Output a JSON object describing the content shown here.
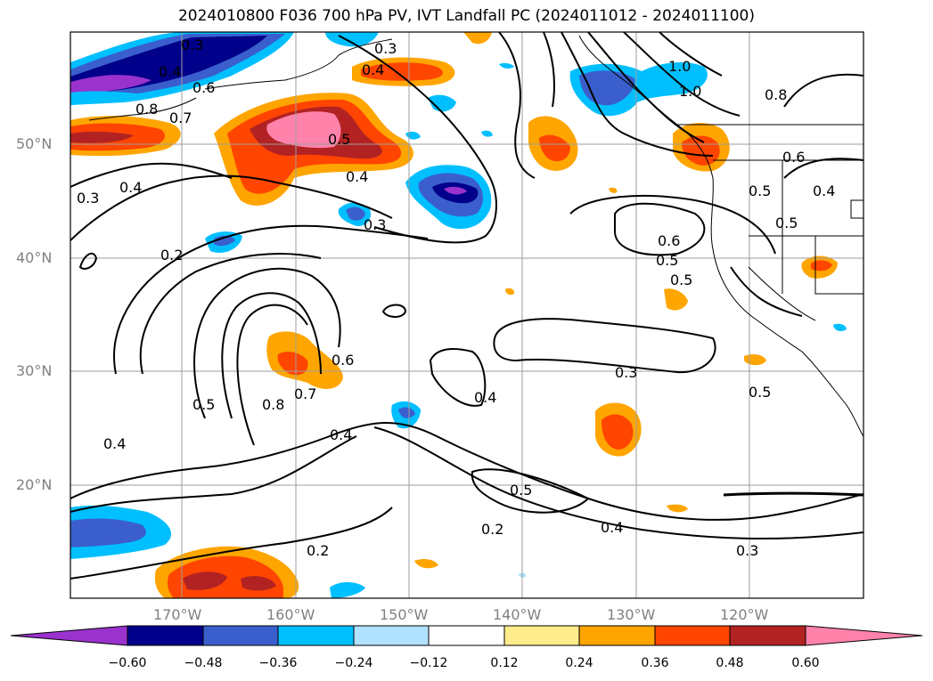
{
  "title": "2024010800 F036 700 hPa PV, IVT Landfall PC (2024011012 - 2024011100)",
  "lat_labels": [
    "50°N",
    "40°N",
    "30°N",
    "20°N"
  ],
  "lon_labels": [
    "170°W",
    "160°W",
    "150°W",
    "140°W",
    "130°W",
    "120°W"
  ],
  "colorbar": {
    "ticks": [
      "−0.60",
      "−0.48",
      "−0.36",
      "−0.24",
      "−0.12",
      "0.12",
      "0.24",
      "0.36",
      "0.48",
      "0.60"
    ],
    "colors": [
      "#9a32cd",
      "#00008b",
      "#3a5fcd",
      "#00bfff",
      "#b0e2ff",
      "#ffffff",
      "#ffec8b",
      "#ffa500",
      "#ff4500",
      "#b22222",
      "#ff82ab"
    ]
  },
  "contour_labels": [
    "0.3",
    "0.4",
    "0.6",
    "0.8",
    "0.7",
    "0.3",
    "0.4",
    "0.2",
    "0.4",
    "0.5",
    "0.4",
    "0.3",
    "0.3",
    "1.0",
    "1.0",
    "0.8",
    "0.6",
    "0.4",
    "0.5",
    "0.5",
    "0.6",
    "0.5",
    "0.6",
    "0.5",
    "0.8",
    "0.7",
    "0.4",
    "0.4",
    "0.3",
    "0.5",
    "0.5",
    "0.2",
    "0.4",
    "0.3",
    "0.2",
    "0.4",
    "0.5"
  ]
}
